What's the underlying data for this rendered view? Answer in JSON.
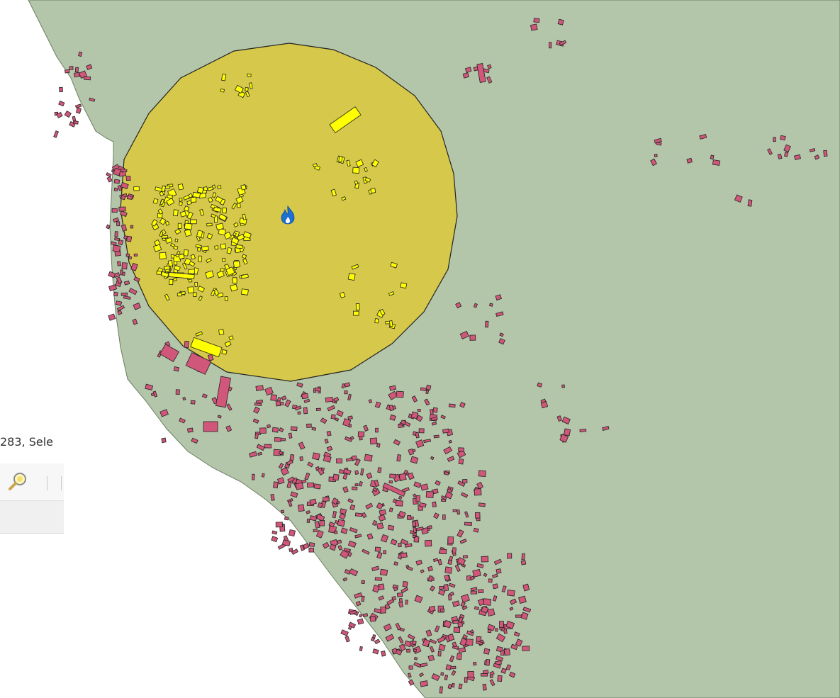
{
  "map": {
    "land_color": "#b4c6aa",
    "buffer_color": "#d5c84a",
    "selected_building_color": "#ffff00",
    "building_color": "#d1577a",
    "outline_color": "#222222",
    "marker_icon": "fire-icon",
    "marker_color": "#1e6fd0"
  },
  "status_bar": {
    "text": "283, Sele"
  },
  "toolbar": {
    "tool_icon": "zoom-to-selection-icon"
  }
}
